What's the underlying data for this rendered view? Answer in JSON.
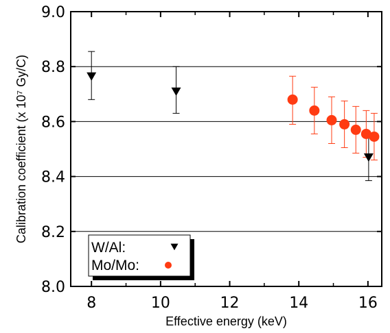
{
  "chart_data": {
    "type": "scatter",
    "title": "",
    "xlabel": "Effective energy (keV)",
    "ylabel": "Calibration coefficient (x 10⁷ Gy/C)",
    "xlim": [
      7.4,
      16.4
    ],
    "ylim": [
      8.0,
      9.0
    ],
    "xticks": [
      8,
      10,
      12,
      14,
      16
    ],
    "xtick_labels": [
      "8",
      "10",
      "12",
      "14",
      "16"
    ],
    "yticks": [
      8.0,
      8.2,
      8.4,
      8.6,
      8.8,
      9.0
    ],
    "ytick_labels": [
      "8.0",
      "8.2",
      "8.4",
      "8.6",
      "8.8",
      "9.0"
    ],
    "grid": "horizontal",
    "legend_position": "bottom-left",
    "series": [
      {
        "name": "W/Al:",
        "marker": "triangle-down",
        "color": "#000000",
        "points": [
          {
            "x": 8.0,
            "y": 8.765,
            "err_low": 8.68,
            "err_high": 8.855
          },
          {
            "x": 10.45,
            "y": 8.71,
            "err_low": 8.63,
            "err_high": 8.8
          },
          {
            "x": 16.02,
            "y": 8.47,
            "err_low": 8.385,
            "err_high": 8.555
          }
        ]
      },
      {
        "name": "Mo/Mo:",
        "marker": "circle",
        "color": "#ff3b12",
        "points": [
          {
            "x": 13.82,
            "y": 8.68,
            "err_low": 8.59,
            "err_high": 8.765
          },
          {
            "x": 14.45,
            "y": 8.64,
            "err_low": 8.555,
            "err_high": 8.725
          },
          {
            "x": 14.95,
            "y": 8.605,
            "err_low": 8.52,
            "err_high": 8.69
          },
          {
            "x": 15.32,
            "y": 8.59,
            "err_low": 8.505,
            "err_high": 8.675
          },
          {
            "x": 15.65,
            "y": 8.57,
            "err_low": 8.485,
            "err_high": 8.655
          },
          {
            "x": 15.95,
            "y": 8.555,
            "err_low": 8.47,
            "err_high": 8.64
          },
          {
            "x": 16.18,
            "y": 8.545,
            "err_low": 8.46,
            "err_high": 8.63
          }
        ]
      }
    ]
  }
}
